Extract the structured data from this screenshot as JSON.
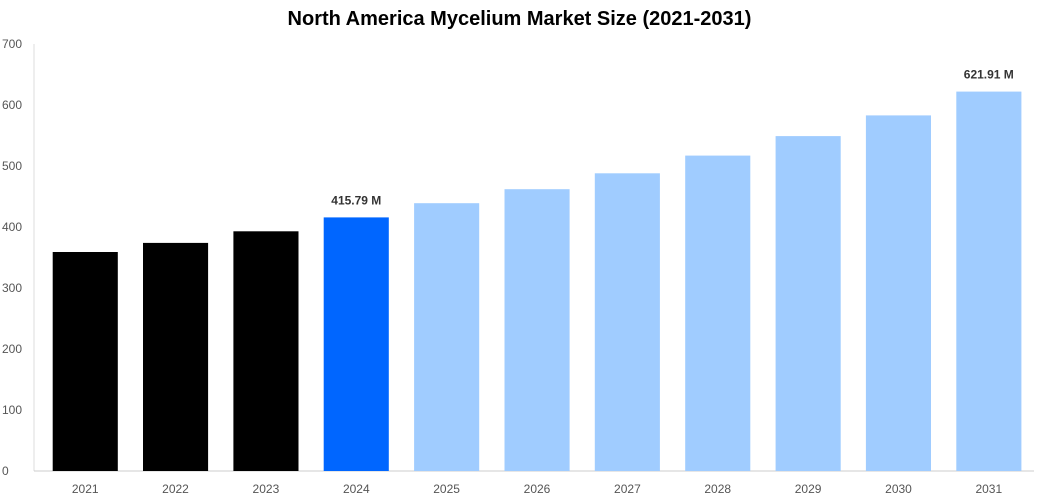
{
  "chart_data": {
    "type": "bar",
    "title": "North America Mycelium Market Size (2021-2031)",
    "categories": [
      "2021",
      "2022",
      "2023",
      "2024",
      "2025",
      "2026",
      "2027",
      "2028",
      "2029",
      "2030",
      "2031"
    ],
    "values": [
      359,
      374,
      393,
      415.79,
      439,
      462,
      488,
      517,
      549,
      583,
      621.91
    ],
    "bar_colors": [
      "#000000",
      "#000000",
      "#000000",
      "#0066ff",
      "#a0ccff",
      "#a0ccff",
      "#a0ccff",
      "#a0ccff",
      "#a0ccff",
      "#a0ccff",
      "#a0ccff"
    ],
    "data_labels": [
      "",
      "",
      "",
      "415.79 M",
      "",
      "",
      "",
      "",
      "",
      "",
      "621.91 M"
    ],
    "ylim": [
      0,
      700
    ],
    "yticks": [
      0,
      100,
      200,
      300,
      400,
      500,
      600,
      700
    ],
    "xlabel": "",
    "ylabel": "",
    "grid": false,
    "legend": "none"
  }
}
